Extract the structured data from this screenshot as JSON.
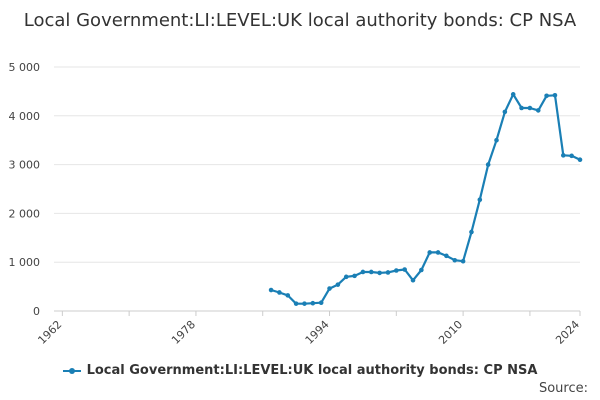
{
  "title": "Local Government:LI:LEVEL:UK local authority bonds: CP NSA",
  "source_label": "Source:",
  "colors": {
    "series": "#1a7fb5",
    "grid": "#e6e6e6",
    "axis": "#cccccc"
  },
  "chart_data": {
    "type": "line",
    "title": "Local Government:LI:LEVEL:UK local authority bonds: CP NSA",
    "xlabel": "",
    "ylabel": "",
    "xlim": [
      1961,
      2024
    ],
    "ylim": [
      0,
      5000
    ],
    "yticks": [
      0,
      1000,
      2000,
      3000,
      4000,
      5000
    ],
    "ytick_labels": [
      "0",
      "1 000",
      "2 000",
      "3 000",
      "4 000",
      "5 000"
    ],
    "xticks": [
      1962,
      1978,
      1994,
      2010,
      2024
    ],
    "xtick_labels": [
      "1962",
      "1978",
      "1994",
      "2010",
      "2024"
    ],
    "grid": true,
    "legend_position": "bottom",
    "series": [
      {
        "name": "Local Government:LI:LEVEL:UK local authority bonds: CP NSA",
        "x": [
          1987,
          1988,
          1989,
          1990,
          1991,
          1992,
          1993,
          1994,
          1995,
          1996,
          1997,
          1998,
          1999,
          2000,
          2001,
          2002,
          2003,
          2004,
          2005,
          2006,
          2007,
          2008,
          2009,
          2010,
          2011,
          2012,
          2013,
          2014,
          2015,
          2016,
          2017,
          2018,
          2019,
          2020,
          2021,
          2022,
          2023,
          2024
        ],
        "y": [
          430,
          380,
          320,
          150,
          150,
          160,
          170,
          460,
          540,
          700,
          720,
          800,
          800,
          780,
          790,
          830,
          850,
          630,
          840,
          1200,
          1200,
          1130,
          1040,
          1020,
          1620,
          2280,
          3000,
          3500,
          4080,
          4440,
          4160,
          4160,
          4110,
          4410,
          4420,
          3190,
          3180,
          3100
        ]
      }
    ]
  }
}
